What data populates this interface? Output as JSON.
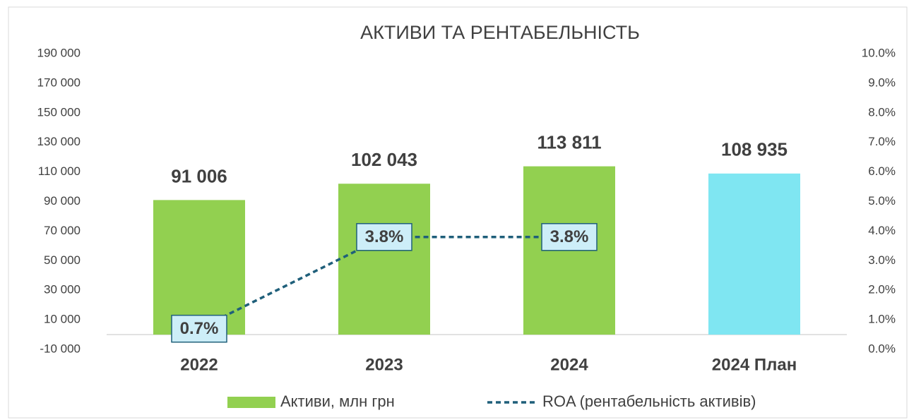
{
  "chart_data": {
    "type": "bar",
    "title": "АКТИВИ ТА РЕНТАБЕЛЬНІСТЬ",
    "categories": [
      "2022",
      "2023",
      "2024",
      "2024 План"
    ],
    "series": [
      {
        "name": "Активи, млн грн",
        "type": "bar",
        "colors": [
          "#92d050",
          "#92d050",
          "#92d050",
          "#7fe6f2"
        ],
        "values": [
          91006,
          102043,
          113811,
          108935
        ],
        "value_labels": [
          "91 006",
          "102 043",
          "113 811",
          "108 935"
        ]
      },
      {
        "name": "ROA (рентабельність активів)",
        "type": "line",
        "axis": "y2",
        "color": "#1f5f7a",
        "values": [
          0.7,
          3.8,
          3.8,
          null
        ],
        "value_labels": [
          "0.7%",
          "3.8%",
          "3.8%",
          null
        ]
      }
    ],
    "ylim": [
      -10000,
      190000
    ],
    "yticks": [
      {
        "value": -10000,
        "label": "-10 000"
      },
      {
        "value": 10000,
        "label": "10 000"
      },
      {
        "value": 30000,
        "label": "30 000"
      },
      {
        "value": 50000,
        "label": "50 000"
      },
      {
        "value": 70000,
        "label": "70 000"
      },
      {
        "value": 90000,
        "label": "90 000"
      },
      {
        "value": 110000,
        "label": "110 000"
      },
      {
        "value": 130000,
        "label": "130 000"
      },
      {
        "value": 150000,
        "label": "150 000"
      },
      {
        "value": 170000,
        "label": "170 000"
      },
      {
        "value": 190000,
        "label": "190 000"
      }
    ],
    "y2lim": [
      0,
      10
    ],
    "y2ticks": [
      {
        "value": 0,
        "label": "0.0%"
      },
      {
        "value": 1,
        "label": "1.0%"
      },
      {
        "value": 2,
        "label": "2.0%"
      },
      {
        "value": 3,
        "label": "3.0%"
      },
      {
        "value": 4,
        "label": "4.0%"
      },
      {
        "value": 5,
        "label": "5.0%"
      },
      {
        "value": 6,
        "label": "6.0%"
      },
      {
        "value": 7,
        "label": "7.0%"
      },
      {
        "value": 8,
        "label": "8.0%"
      },
      {
        "value": 9,
        "label": "9.0%"
      },
      {
        "value": 10,
        "label": "10.0%"
      }
    ],
    "legend": "bottom"
  }
}
